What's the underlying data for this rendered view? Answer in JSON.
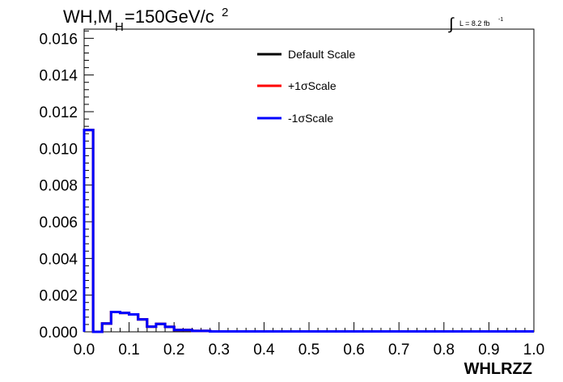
{
  "chart_data": {
    "type": "histogram",
    "title": {
      "main": "WH,M",
      "sub": "H",
      "rest": "=150GeV/c",
      "sup": "2"
    },
    "lumi": {
      "symbol": "∫",
      "text": "L = 8.2 fb",
      "sup": "-1"
    },
    "xlabel": "WHLRZZ",
    "ylabel": "",
    "xlim": [
      0.0,
      1.0
    ],
    "ylim": [
      0.0,
      0.0165
    ],
    "xticks": [
      "0.0",
      "0.1",
      "0.2",
      "0.3",
      "0.4",
      "0.5",
      "0.6",
      "0.7",
      "0.8",
      "0.9",
      "1.0"
    ],
    "yticks": [
      "0.000",
      "0.002",
      "0.004",
      "0.006",
      "0.008",
      "0.010",
      "0.012",
      "0.014",
      "0.016"
    ],
    "bin_edges": [
      0.0,
      0.02,
      0.04,
      0.06,
      0.08,
      0.1,
      0.12,
      0.14,
      0.16,
      0.18,
      0.2,
      0.24,
      0.28,
      1.0
    ],
    "series": [
      {
        "name": "Default Scale",
        "color": "#000000",
        "values": [
          0.011,
          0.0,
          0.00045,
          0.00108,
          0.00103,
          0.00095,
          0.00068,
          0.00028,
          0.00043,
          0.00027,
          0.0001,
          5e-05,
          2e-05
        ]
      },
      {
        "name": "+1σScale",
        "color": "#ff0000",
        "values": [
          0.011,
          0.0,
          0.00045,
          0.00108,
          0.00103,
          0.00095,
          0.00068,
          0.00028,
          0.00043,
          0.00027,
          0.0001,
          5e-05,
          2e-05
        ]
      },
      {
        "name": "-1σScale",
        "color": "#0000ff",
        "values": [
          0.011,
          0.0,
          0.00045,
          0.00108,
          0.00103,
          0.00095,
          0.00068,
          0.00028,
          0.00043,
          0.00027,
          0.0001,
          5e-05,
          2e-05
        ]
      }
    ],
    "legend_position": "top-center",
    "grid": false
  }
}
